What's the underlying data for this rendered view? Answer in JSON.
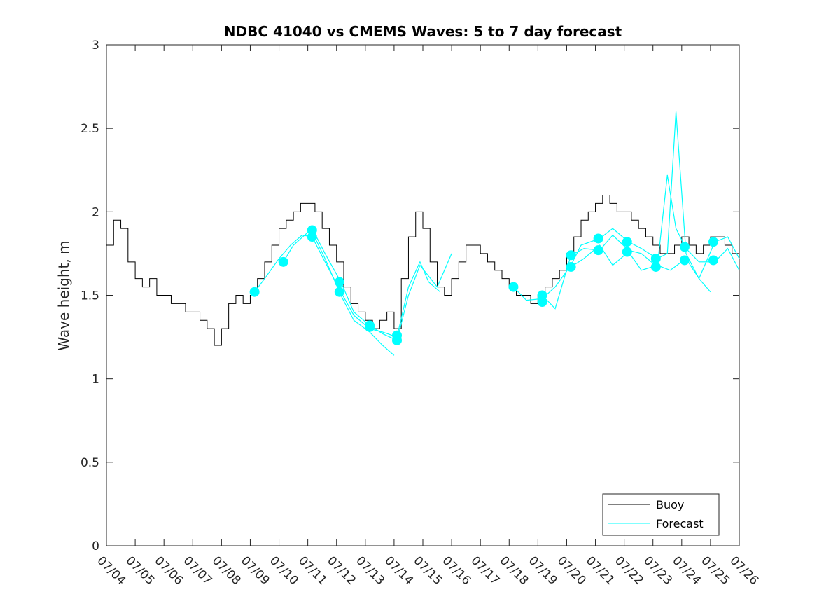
{
  "chart_data": {
    "type": "line",
    "title": "NDBC 41040 vs CMEMS Waves: 5 to 7 day forecast",
    "xlabel": "",
    "ylabel": "Wave height, m",
    "x_ticks": [
      "07/04",
      "07/05",
      "07/06",
      "07/07",
      "07/08",
      "07/09",
      "07/10",
      "07/11",
      "07/12",
      "07/13",
      "07/14",
      "07/15",
      "07/16",
      "07/17",
      "07/18",
      "07/19",
      "07/20",
      "07/21",
      "07/22",
      "07/23",
      "07/24",
      "07/25",
      "07/26"
    ],
    "y_ticks": [
      "0",
      "0.5",
      "1",
      "1.5",
      "2",
      "2.5",
      "3"
    ],
    "ylim": [
      0,
      3
    ],
    "grid": false,
    "legend_position": "bottom-right",
    "colors": {
      "buoy": "#000000",
      "forecast": "#00ffff",
      "axes": "#262626"
    },
    "series": [
      {
        "name": "Buoy",
        "style": "line",
        "x": [
          4.0,
          4.25,
          4.5,
          4.75,
          5.0,
          5.25,
          5.5,
          5.75,
          6.0,
          6.25,
          6.5,
          6.75,
          7.0,
          7.25,
          7.5,
          7.75,
          8.0,
          8.25,
          8.5,
          8.75,
          9.0,
          9.25,
          9.5,
          9.75,
          10.0,
          10.25,
          10.5,
          10.75,
          11.0,
          11.25,
          11.5,
          11.75,
          12.0,
          12.25,
          12.5,
          12.75,
          13.0,
          13.25,
          13.5,
          13.75,
          14.0,
          14.25,
          14.5,
          14.75,
          15.0,
          15.25,
          15.5,
          15.75,
          16.0,
          16.25,
          16.5,
          16.75,
          17.0,
          17.25,
          17.5,
          17.75,
          18.0,
          18.25,
          18.5,
          18.75,
          19.0,
          19.25,
          19.5,
          19.75,
          20.0,
          20.25,
          20.5,
          20.75,
          21.0,
          21.25,
          21.5,
          21.75,
          22.0,
          22.25,
          22.5,
          22.75,
          23.0,
          23.25,
          23.5,
          23.75,
          24.0,
          24.25,
          24.5,
          24.75,
          25.0,
          25.25,
          25.5,
          25.75,
          26.0
        ],
        "y": [
          1.8,
          1.95,
          1.9,
          1.7,
          1.6,
          1.55,
          1.6,
          1.5,
          1.5,
          1.45,
          1.45,
          1.4,
          1.4,
          1.35,
          1.3,
          1.2,
          1.3,
          1.45,
          1.5,
          1.45,
          1.5,
          1.6,
          1.7,
          1.8,
          1.9,
          1.95,
          2.0,
          2.05,
          2.05,
          2.0,
          1.9,
          1.8,
          1.7,
          1.55,
          1.45,
          1.4,
          1.35,
          1.3,
          1.35,
          1.4,
          1.3,
          1.6,
          1.85,
          2.0,
          1.9,
          1.7,
          1.55,
          1.5,
          1.6,
          1.7,
          1.8,
          1.8,
          1.75,
          1.7,
          1.65,
          1.6,
          1.55,
          1.5,
          1.5,
          1.45,
          1.5,
          1.55,
          1.6,
          1.65,
          1.75,
          1.85,
          1.95,
          2.0,
          2.05,
          2.1,
          2.05,
          2.0,
          2.0,
          1.95,
          1.9,
          1.85,
          1.8,
          1.75,
          1.75,
          1.8,
          1.85,
          1.8,
          1.75,
          1.8,
          1.85,
          1.85,
          1.8,
          1.75,
          1.75
        ]
      },
      {
        "name": "Forecast",
        "style": "line+markers",
        "runs": [
          {
            "x": [
              9.15,
              9.5,
              10.0,
              10.4,
              10.8,
              11.15,
              11.6,
              12.15,
              12.6,
              13.15,
              13.6,
              14.1,
              14.5,
              14.9,
              15.2,
              15.6
            ],
            "y": [
              1.52,
              1.6,
              1.72,
              1.8,
              1.86,
              1.85,
              1.7,
              1.52,
              1.38,
              1.3,
              1.28,
              1.25,
              1.55,
              1.7,
              1.58,
              1.52
            ]
          },
          {
            "x": [
              10.15,
              10.5,
              11.15,
              11.6,
              12.15,
              12.6,
              13.15,
              13.6,
              14.1,
              14.5,
              14.9,
              15.5,
              16.0
            ],
            "y": [
              1.7,
              1.8,
              1.9,
              1.75,
              1.58,
              1.4,
              1.32,
              1.27,
              1.23,
              1.5,
              1.68,
              1.55,
              1.75
            ]
          },
          {
            "x": [
              11.15,
              11.6,
              12.15,
              12.6,
              13.15,
              13.6,
              14.0
            ],
            "y": [
              1.88,
              1.72,
              1.5,
              1.35,
              1.28,
              1.2,
              1.14
            ]
          },
          {
            "x": [
              18.15,
              18.6,
              19.15,
              19.6,
              20.15,
              20.5,
              21.15,
              21.6,
              22.15,
              22.6,
              23.15,
              23.5,
              23.8,
              24.15,
              24.6,
              25.15,
              25.6,
              26.0
            ],
            "y": [
              1.55,
              1.47,
              1.48,
              1.55,
              1.68,
              1.8,
              1.84,
              1.9,
              1.82,
              1.78,
              1.72,
              1.75,
              2.6,
              1.75,
              1.6,
              1.82,
              1.85,
              1.72
            ]
          },
          {
            "x": [
              19.15,
              19.6,
              20.15,
              20.6,
              21.15,
              21.6,
              22.15,
              22.6,
              23.15,
              23.5,
              23.8,
              24.15,
              24.6,
              25.15,
              25.6,
              26.0
            ],
            "y": [
              1.5,
              1.42,
              1.74,
              1.78,
              1.77,
              1.86,
              1.77,
              1.75,
              1.67,
              2.22,
              1.9,
              1.78,
              1.7,
              1.7,
              1.78,
              1.65
            ]
          },
          {
            "x": [
              20.15,
              20.6,
              21.15,
              21.6,
              22.15,
              22.6,
              23.15,
              23.6,
              24.15,
              24.6,
              25.0
            ],
            "y": [
              1.67,
              1.72,
              1.8,
              1.68,
              1.76,
              1.65,
              1.68,
              1.65,
              1.72,
              1.6,
              1.52
            ]
          }
        ],
        "markers": [
          {
            "x": 9.15,
            "y": 1.52
          },
          {
            "x": 10.15,
            "y": 1.7
          },
          {
            "x": 11.15,
            "y": 1.85
          },
          {
            "x": 11.15,
            "y": 1.89
          },
          {
            "x": 12.1,
            "y": 1.58
          },
          {
            "x": 12.1,
            "y": 1.52
          },
          {
            "x": 13.15,
            "y": 1.31
          },
          {
            "x": 13.15,
            "y": 1.32
          },
          {
            "x": 14.1,
            "y": 1.26
          },
          {
            "x": 14.1,
            "y": 1.23
          },
          {
            "x": 18.15,
            "y": 1.55
          },
          {
            "x": 19.15,
            "y": 1.5
          },
          {
            "x": 19.15,
            "y": 1.46
          },
          {
            "x": 20.15,
            "y": 1.74
          },
          {
            "x": 20.15,
            "y": 1.67
          },
          {
            "x": 21.1,
            "y": 1.84
          },
          {
            "x": 21.1,
            "y": 1.77
          },
          {
            "x": 22.1,
            "y": 1.82
          },
          {
            "x": 22.1,
            "y": 1.76
          },
          {
            "x": 23.1,
            "y": 1.72
          },
          {
            "x": 23.1,
            "y": 1.67
          },
          {
            "x": 24.1,
            "y": 1.79
          },
          {
            "x": 24.1,
            "y": 1.71
          },
          {
            "x": 25.1,
            "y": 1.82
          },
          {
            "x": 25.1,
            "y": 1.71
          }
        ]
      }
    ]
  }
}
